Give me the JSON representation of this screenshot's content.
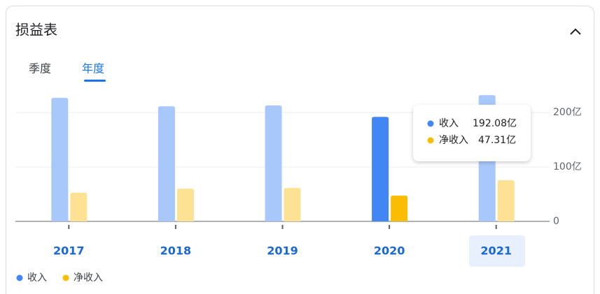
{
  "header": {
    "title": "损益表",
    "tabs": [
      "季度",
      "年度"
    ]
  },
  "chart_data": {
    "type": "bar",
    "categories": [
      "2017",
      "2018",
      "2019",
      "2020",
      "2021"
    ],
    "series": [
      {
        "name": "收入",
        "color": "#4285f4",
        "inactive_color": "#a8c7fa",
        "values": [
          227,
          211.5,
          213,
          192.08,
          232
        ],
        "value_labels": [
          null,
          null,
          null,
          "192.08亿",
          null
        ]
      },
      {
        "name": "净收入",
        "color": "#fbbc04",
        "inactive_color": "#fde293",
        "values": [
          52.6,
          60,
          61.5,
          47.31,
          75.6
        ],
        "value_labels": [
          null,
          null,
          null,
          "47.31亿",
          null
        ]
      }
    ],
    "ylim": [
      0,
      240
    ],
    "yticks": [
      0,
      {
        "value": 100,
        "label": "100亿"
      },
      {
        "value": 200,
        "label": "200亿"
      }
    ],
    "grid": true
  }
}
